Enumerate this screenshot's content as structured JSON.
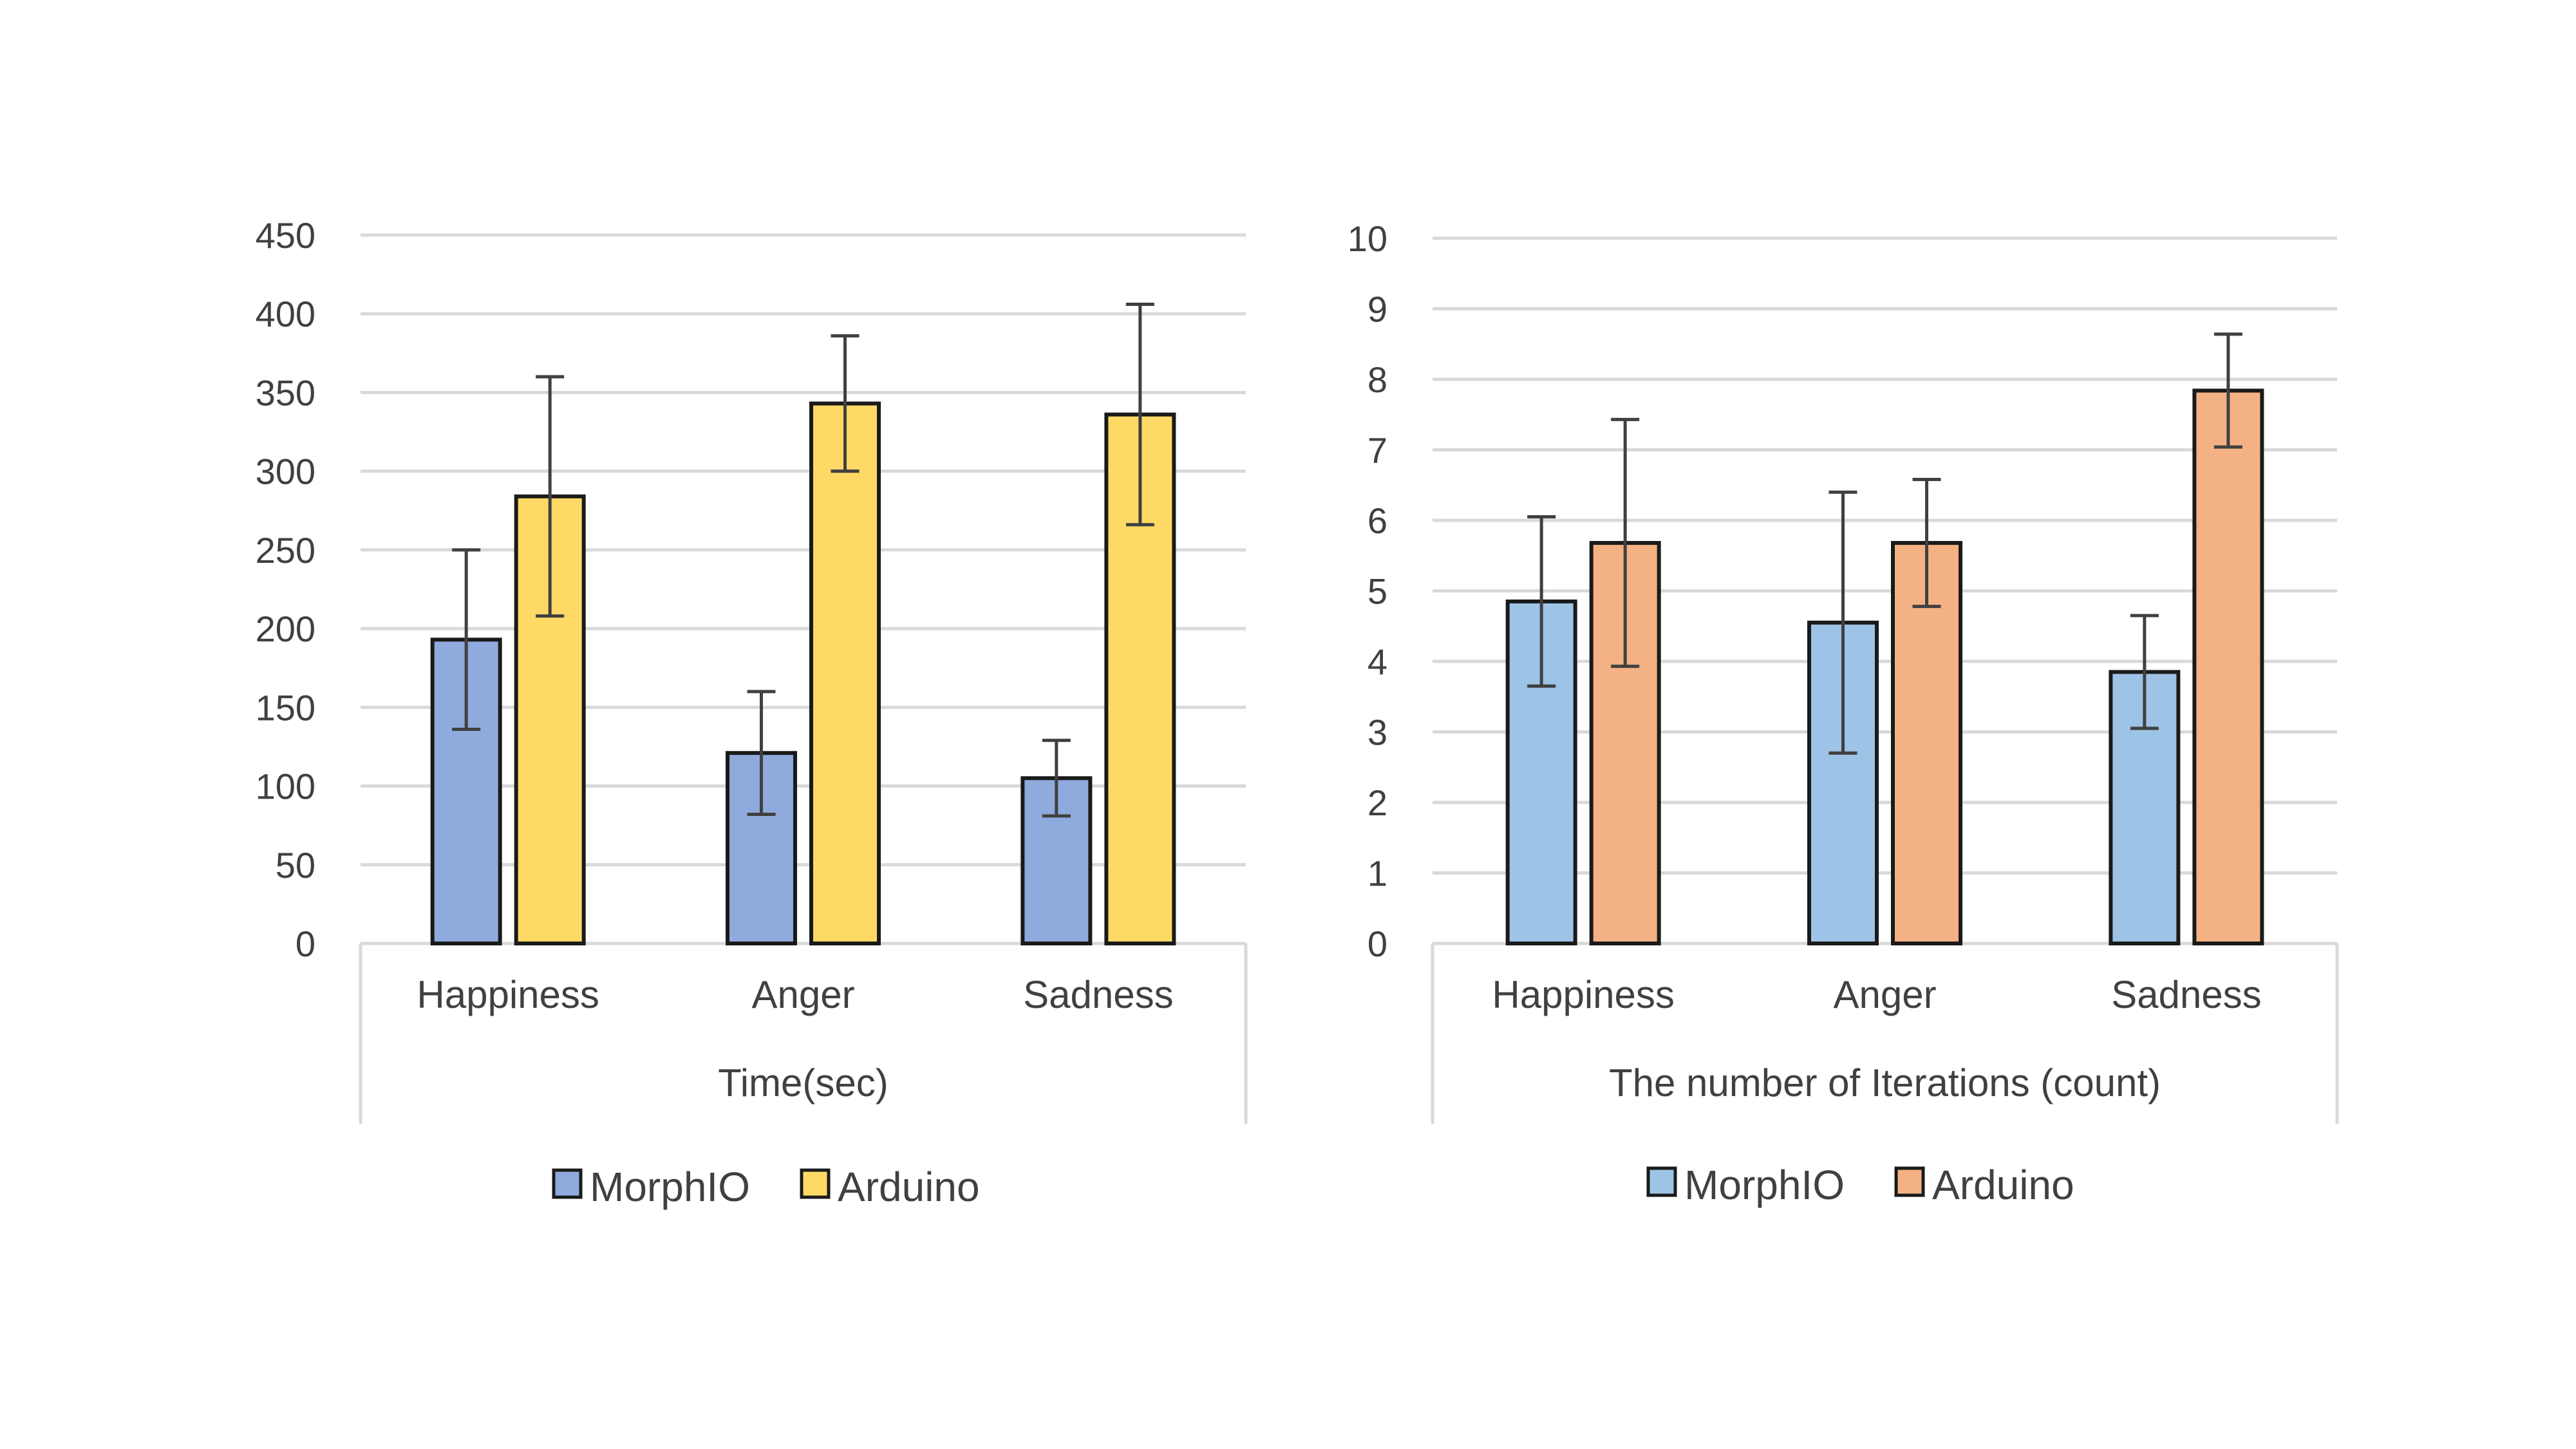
{
  "chart_data": [
    {
      "type": "bar",
      "categories": [
        "Happiness",
        "Anger",
        "Sadness"
      ],
      "series": [
        {
          "name": "MorphIO",
          "values": [
            193,
            121,
            105
          ],
          "errors": [
            57,
            39,
            24
          ]
        },
        {
          "name": "Arduino",
          "values": [
            284,
            343,
            336
          ],
          "errors": [
            76,
            43,
            70
          ]
        }
      ],
      "colors": [
        "#8faadc",
        "#ffd966"
      ],
      "xlabel": "Time(sec)",
      "ylabel": "",
      "ylim": [
        0,
        450
      ],
      "yticks": [
        "0",
        "50",
        "100",
        "150",
        "200",
        "250",
        "300",
        "350",
        "400",
        "450"
      ],
      "grid": true,
      "legend": "bottom"
    },
    {
      "type": "bar",
      "categories": [
        "Happiness",
        "Anger",
        "Sadness"
      ],
      "series": [
        {
          "name": "MorphIO",
          "values": [
            4.85,
            4.55,
            3.85
          ],
          "errors": [
            1.2,
            1.85,
            0.8
          ]
        },
        {
          "name": "Arduino",
          "values": [
            5.68,
            5.68,
            7.84
          ],
          "errors": [
            1.75,
            0.9,
            0.8
          ]
        }
      ],
      "colors": [
        "#9dc3e6",
        "#f4b183"
      ],
      "xlabel": "The number of Iterations (count)",
      "ylabel": "",
      "ylim": [
        0,
        10
      ],
      "yticks": [
        "0",
        "1",
        "2",
        "3",
        "4",
        "5",
        "6",
        "7",
        "8",
        "9",
        "10"
      ],
      "grid": true,
      "legend": "bottom"
    }
  ]
}
